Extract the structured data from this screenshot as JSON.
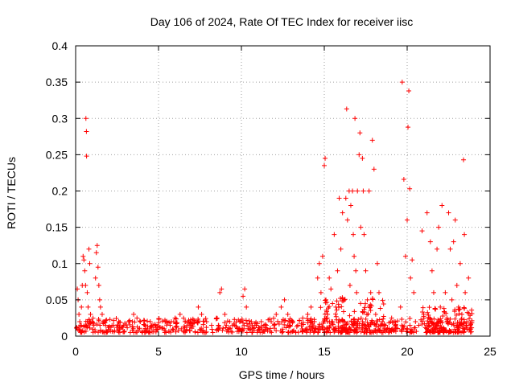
{
  "chart_data": {
    "type": "scatter",
    "title": "Day 106 of 2024, Rate Of TEC Index for receiver iisc",
    "xlabel": "GPS time / hours",
    "ylabel": "ROTI / TECUs",
    "xlim": [
      0,
      25
    ],
    "ylim": [
      0,
      0.4
    ],
    "xticks": [
      0,
      5,
      10,
      15,
      20,
      25
    ],
    "yticks": [
      0,
      0.05,
      0.1,
      0.15,
      0.2,
      0.25,
      0.3,
      0.35,
      0.4
    ],
    "xtick_labels": [
      "0",
      "5",
      "10",
      "15",
      "20",
      "25"
    ],
    "ytick_labels": [
      "0",
      "0.05",
      "0.1",
      "0.15",
      "0.2",
      "0.25",
      "0.3",
      "0.35",
      "0.4"
    ],
    "grid": true,
    "marker": "+",
    "color": "#ff0000",
    "series": [
      {
        "name": "ROTI",
        "points": [
          [
            0.1,
            0.065
          ],
          [
            0.15,
            0.05
          ],
          [
            0.2,
            0.03
          ],
          [
            0.25,
            0.02
          ],
          [
            0.3,
            0.015
          ],
          [
            0.35,
            0.04
          ],
          [
            0.4,
            0.07
          ],
          [
            0.45,
            0.11
          ],
          [
            0.5,
            0.105
          ],
          [
            0.55,
            0.09
          ],
          [
            0.6,
            0.07
          ],
          [
            0.62,
            0.3
          ],
          [
            0.65,
            0.282
          ],
          [
            0.66,
            0.248
          ],
          [
            0.7,
            0.06
          ],
          [
            0.75,
            0.04
          ],
          [
            0.8,
            0.12
          ],
          [
            0.85,
            0.1
          ],
          [
            0.9,
            0.03
          ],
          [
            1.0,
            0.02
          ],
          [
            1.1,
            0.015
          ],
          [
            1.2,
            0.08
          ],
          [
            1.25,
            0.115
          ],
          [
            1.3,
            0.125
          ],
          [
            1.35,
            0.095
          ],
          [
            1.4,
            0.07
          ],
          [
            1.45,
            0.05
          ],
          [
            1.5,
            0.04
          ],
          [
            1.6,
            0.03
          ],
          [
            1.7,
            0.02
          ],
          [
            1.8,
            0.015
          ],
          [
            2.0,
            0.012
          ],
          [
            2.3,
            0.015
          ],
          [
            2.6,
            0.02
          ],
          [
            2.9,
            0.015
          ],
          [
            3.2,
            0.02
          ],
          [
            3.5,
            0.03
          ],
          [
            3.7,
            0.025
          ],
          [
            3.9,
            0.02
          ],
          [
            4.2,
            0.015
          ],
          [
            4.5,
            0.02
          ],
          [
            4.8,
            0.015
          ],
          [
            5.1,
            0.012
          ],
          [
            5.4,
            0.02
          ],
          [
            5.7,
            0.015
          ],
          [
            6.0,
            0.025
          ],
          [
            6.3,
            0.03
          ],
          [
            6.6,
            0.02
          ],
          [
            6.9,
            0.015
          ],
          [
            7.2,
            0.02
          ],
          [
            7.4,
            0.04
          ],
          [
            7.6,
            0.03
          ],
          [
            7.9,
            0.02
          ],
          [
            8.2,
            0.015
          ],
          [
            8.5,
            0.025
          ],
          [
            8.7,
            0.06
          ],
          [
            8.8,
            0.065
          ],
          [
            9.0,
            0.03
          ],
          [
            9.3,
            0.02
          ],
          [
            9.6,
            0.015
          ],
          [
            9.9,
            0.02
          ],
          [
            10.1,
            0.055
          ],
          [
            10.2,
            0.065
          ],
          [
            10.3,
            0.04
          ],
          [
            10.6,
            0.02
          ],
          [
            10.9,
            0.015
          ],
          [
            11.2,
            0.02
          ],
          [
            11.5,
            0.015
          ],
          [
            11.8,
            0.02
          ],
          [
            12.1,
            0.03
          ],
          [
            12.4,
            0.04
          ],
          [
            12.6,
            0.05
          ],
          [
            12.8,
            0.03
          ],
          [
            13.1,
            0.02
          ],
          [
            13.4,
            0.015
          ],
          [
            13.7,
            0.025
          ],
          [
            14.0,
            0.03
          ],
          [
            14.2,
            0.04
          ],
          [
            14.4,
            0.02
          ],
          [
            14.6,
            0.08
          ],
          [
            14.7,
            0.1
          ],
          [
            14.8,
            0.06
          ],
          [
            14.9,
            0.11
          ],
          [
            15.0,
            0.235
          ],
          [
            15.05,
            0.245
          ],
          [
            15.1,
            0.05
          ],
          [
            15.2,
            0.03
          ],
          [
            15.3,
            0.08
          ],
          [
            15.4,
            0.065
          ],
          [
            15.5,
            0.02
          ],
          [
            15.6,
            0.14
          ],
          [
            15.7,
            0.04
          ],
          [
            15.8,
            0.09
          ],
          [
            15.9,
            0.19
          ],
          [
            16.0,
            0.12
          ],
          [
            16.1,
            0.17
          ],
          [
            16.2,
            0.05
          ],
          [
            16.3,
            0.19
          ],
          [
            16.35,
            0.313
          ],
          [
            16.4,
            0.16
          ],
          [
            16.5,
            0.2
          ],
          [
            16.55,
            0.07
          ],
          [
            16.6,
            0.18
          ],
          [
            16.7,
            0.2
          ],
          [
            16.75,
            0.14
          ],
          [
            16.8,
            0.11
          ],
          [
            16.85,
            0.3
          ],
          [
            16.9,
            0.09
          ],
          [
            16.95,
            0.06
          ],
          [
            17.0,
            0.2
          ],
          [
            17.1,
            0.25
          ],
          [
            17.15,
            0.28
          ],
          [
            17.2,
            0.15
          ],
          [
            17.3,
            0.245
          ],
          [
            17.35,
            0.2
          ],
          [
            17.4,
            0.14
          ],
          [
            17.5,
            0.09
          ],
          [
            17.6,
            0.05
          ],
          [
            17.7,
            0.2
          ],
          [
            17.8,
            0.06
          ],
          [
            17.9,
            0.27
          ],
          [
            18.0,
            0.23
          ],
          [
            18.1,
            0.03
          ],
          [
            18.2,
            0.1
          ],
          [
            18.3,
            0.06
          ],
          [
            18.5,
            0.02
          ],
          [
            18.7,
            0.015
          ],
          [
            19.0,
            0.02
          ],
          [
            19.3,
            0.015
          ],
          [
            19.6,
            0.04
          ],
          [
            19.7,
            0.35
          ],
          [
            19.8,
            0.216
          ],
          [
            19.9,
            0.11
          ],
          [
            20.0,
            0.16
          ],
          [
            20.05,
            0.288
          ],
          [
            20.1,
            0.338
          ],
          [
            20.15,
            0.203
          ],
          [
            20.2,
            0.08
          ],
          [
            20.3,
            0.105
          ],
          [
            20.4,
            0.06
          ],
          [
            20.5,
            0.02
          ],
          [
            20.7,
            0.015
          ],
          [
            20.9,
            0.145
          ],
          [
            21.0,
            0.03
          ],
          [
            21.2,
            0.17
          ],
          [
            21.4,
            0.13
          ],
          [
            21.5,
            0.09
          ],
          [
            21.6,
            0.06
          ],
          [
            21.8,
            0.12
          ],
          [
            21.9,
            0.15
          ],
          [
            22.0,
            0.04
          ],
          [
            22.1,
            0.18
          ],
          [
            22.3,
            0.06
          ],
          [
            22.5,
            0.17
          ],
          [
            22.6,
            0.12
          ],
          [
            22.7,
            0.05
          ],
          [
            22.8,
            0.13
          ],
          [
            22.9,
            0.16
          ],
          [
            23.0,
            0.07
          ],
          [
            23.1,
            0.04
          ],
          [
            23.2,
            0.1
          ],
          [
            23.3,
            0.03
          ],
          [
            23.4,
            0.243
          ],
          [
            23.45,
            0.14
          ],
          [
            23.5,
            0.06
          ],
          [
            23.6,
            0.02
          ],
          [
            23.7,
            0.08
          ],
          [
            23.8,
            0.015
          ]
        ],
        "dense_bands": [
          {
            "x": [
              0.0,
              24.0
            ],
            "y": [
              0.005,
              0.025
            ]
          },
          {
            "x": [
              14.6,
              18.6
            ],
            "y": [
              0.005,
              0.06
            ]
          },
          {
            "x": [
              20.8,
              24.0
            ],
            "y": [
              0.005,
              0.04
            ]
          }
        ]
      }
    ]
  }
}
